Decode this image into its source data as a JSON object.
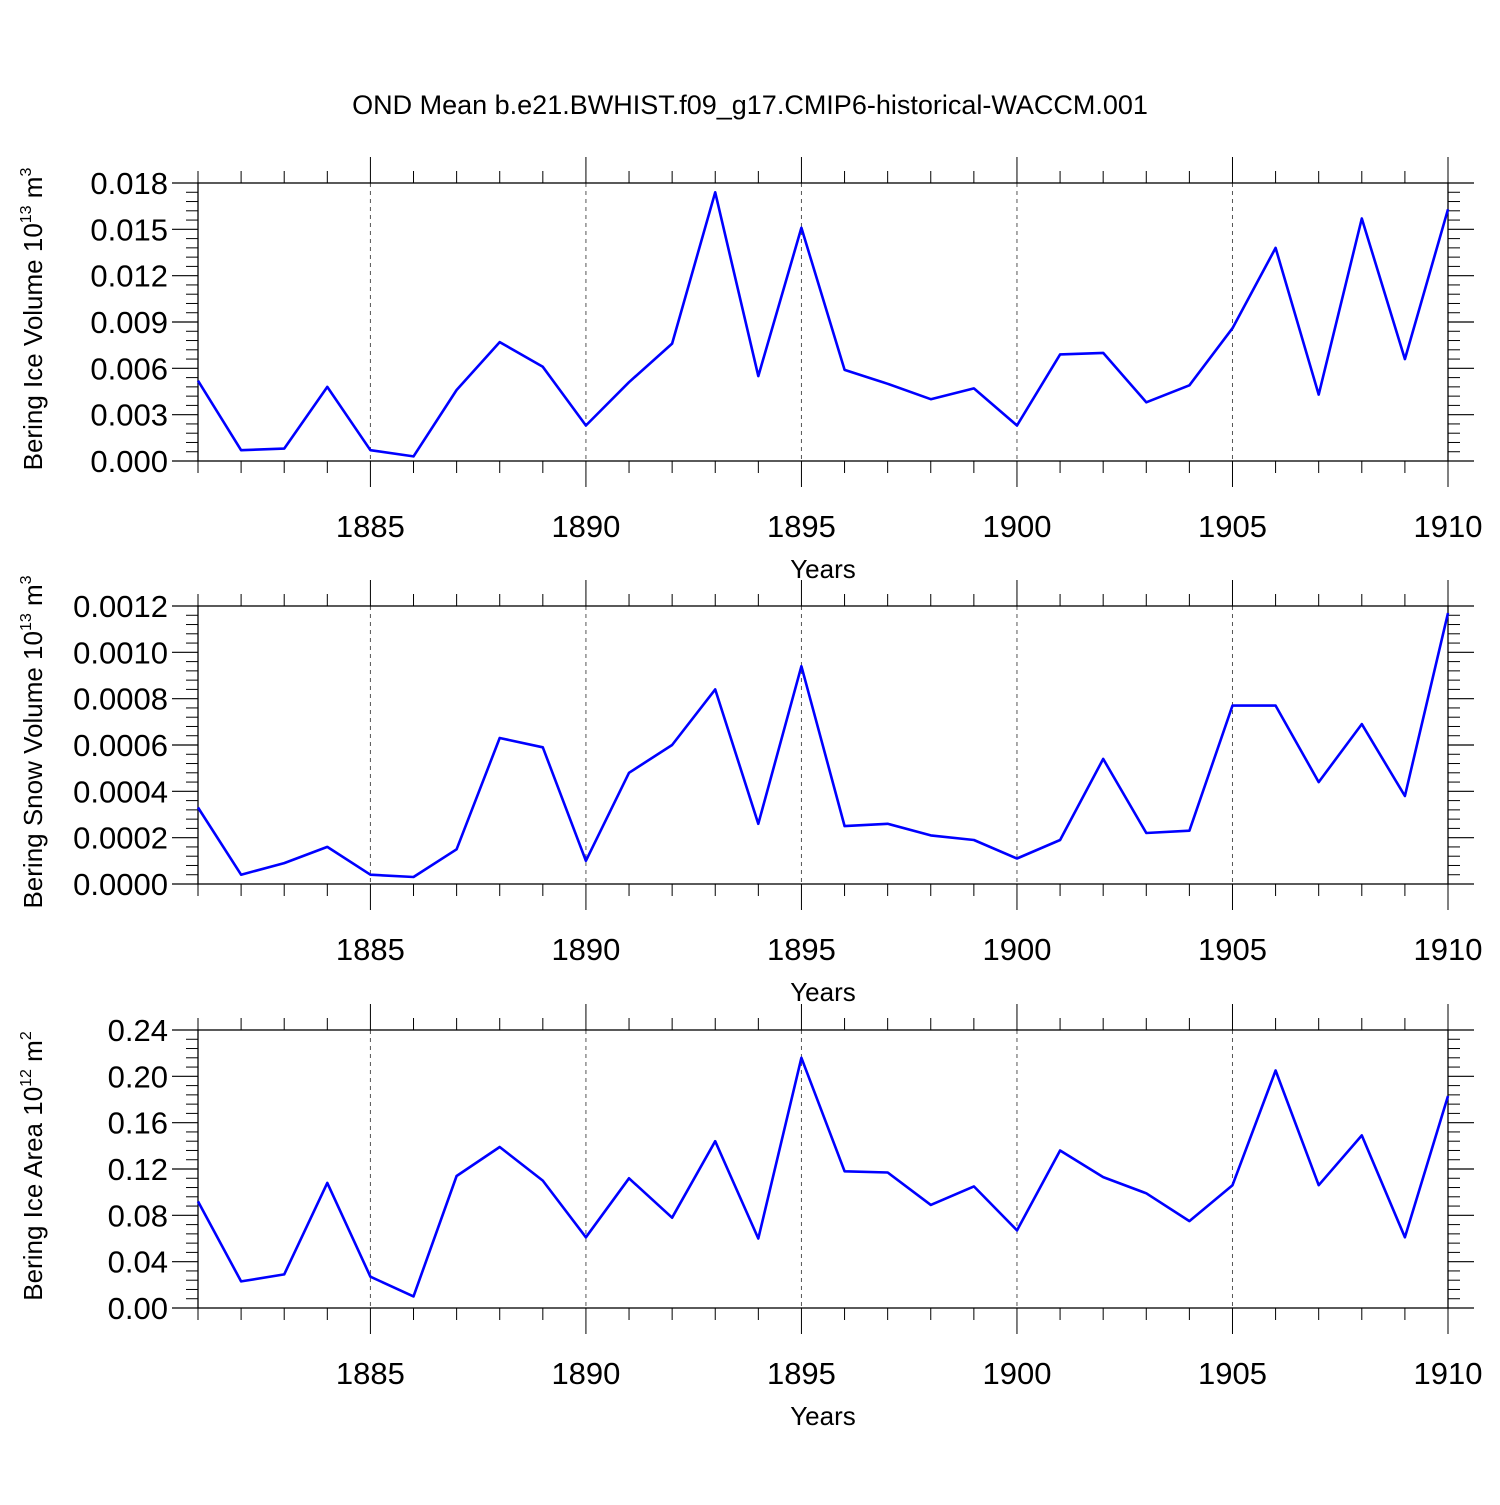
{
  "figure": {
    "title": "OND Mean b.e21.BWHIST.f09_g17.CMIP6-historical-WACCM.001"
  },
  "colors": {
    "line": "#0000ff",
    "axis": "#000000",
    "grid": "#555555"
  },
  "chart_data": [
    {
      "type": "line",
      "ylabel": "Bering Ice Volume",
      "yunit_base": "10",
      "yunit_exp": "13",
      "yunit_suffix": "m",
      "yunit_suffix_exp": "3",
      "xlabel": "Years",
      "xlim": [
        1881,
        1910
      ],
      "ylim": [
        0.0,
        0.018
      ],
      "yticks": [
        "0.000",
        "0.003",
        "0.006",
        "0.009",
        "0.012",
        "0.015",
        "0.018"
      ],
      "xticks": [
        "1885",
        "1890",
        "1895",
        "1900",
        "1905",
        "1910"
      ],
      "grid": "vertical dashed at major x ticks",
      "series": [
        {
          "x": [
            1881,
            1882,
            1883,
            1884,
            1885,
            1886,
            1887,
            1888,
            1889,
            1890,
            1891,
            1892,
            1893,
            1894,
            1895,
            1896,
            1897,
            1898,
            1899,
            1900,
            1901,
            1902,
            1903,
            1904,
            1905,
            1906,
            1907,
            1908,
            1909,
            1910
          ],
          "values": [
            0.0052,
            0.0007,
            0.0008,
            0.0048,
            0.0007,
            0.0003,
            0.0046,
            0.0077,
            0.0061,
            0.0023,
            0.0051,
            0.0076,
            0.0174,
            0.0055,
            0.0151,
            0.0059,
            0.005,
            0.004,
            0.0047,
            0.0023,
            0.0069,
            0.007,
            0.0038,
            0.0049,
            0.0086,
            0.0138,
            0.0043,
            0.0157,
            0.0066,
            0.0163
          ]
        }
      ]
    },
    {
      "type": "line",
      "ylabel": "Bering Snow Volume",
      "yunit_base": "10",
      "yunit_exp": "13",
      "yunit_suffix": "m",
      "yunit_suffix_exp": "3",
      "xlabel": "Years",
      "xlim": [
        1881,
        1910
      ],
      "ylim": [
        0.0,
        0.0012
      ],
      "yticks": [
        "0.0000",
        "0.0002",
        "0.0004",
        "0.0006",
        "0.0008",
        "0.0010",
        "0.0012"
      ],
      "xticks": [
        "1885",
        "1890",
        "1895",
        "1900",
        "1905",
        "1910"
      ],
      "grid": "vertical dashed at major x ticks",
      "series": [
        {
          "x": [
            1881,
            1882,
            1883,
            1884,
            1885,
            1886,
            1887,
            1888,
            1889,
            1890,
            1891,
            1892,
            1893,
            1894,
            1895,
            1896,
            1897,
            1898,
            1899,
            1900,
            1901,
            1902,
            1903,
            1904,
            1905,
            1906,
            1907,
            1908,
            1909,
            1910
          ],
          "values": [
            0.00033,
            4e-05,
            9e-05,
            0.00016,
            4e-05,
            3e-05,
            0.00015,
            0.00063,
            0.00059,
            0.0001,
            0.00048,
            0.0006,
            0.00084,
            0.00026,
            0.00094,
            0.00025,
            0.00026,
            0.00021,
            0.00019,
            0.00011,
            0.00019,
            0.00054,
            0.00022,
            0.00023,
            0.00077,
            0.00077,
            0.00044,
            0.00069,
            0.00038,
            0.00117
          ]
        }
      ]
    },
    {
      "type": "line",
      "ylabel": "Bering Ice Area",
      "yunit_base": "10",
      "yunit_exp": "12",
      "yunit_suffix": "m",
      "yunit_suffix_exp": "2",
      "xlabel": "Years",
      "xlim": [
        1881,
        1910
      ],
      "ylim": [
        0.0,
        0.24
      ],
      "yticks": [
        "0.00",
        "0.04",
        "0.08",
        "0.12",
        "0.16",
        "0.20",
        "0.24"
      ],
      "xticks": [
        "1885",
        "1890",
        "1895",
        "1900",
        "1905",
        "1910"
      ],
      "grid": "vertical dashed at major x ticks",
      "series": [
        {
          "x": [
            1881,
            1882,
            1883,
            1884,
            1885,
            1886,
            1887,
            1888,
            1889,
            1890,
            1891,
            1892,
            1893,
            1894,
            1895,
            1896,
            1897,
            1898,
            1899,
            1900,
            1901,
            1902,
            1903,
            1904,
            1905,
            1906,
            1907,
            1908,
            1909,
            1910
          ],
          "values": [
            0.092,
            0.023,
            0.029,
            0.108,
            0.027,
            0.01,
            0.114,
            0.139,
            0.11,
            0.061,
            0.112,
            0.078,
            0.144,
            0.06,
            0.216,
            0.118,
            0.117,
            0.089,
            0.105,
            0.067,
            0.136,
            0.113,
            0.099,
            0.075,
            0.106,
            0.205,
            0.106,
            0.149,
            0.061,
            0.183
          ]
        }
      ]
    }
  ]
}
